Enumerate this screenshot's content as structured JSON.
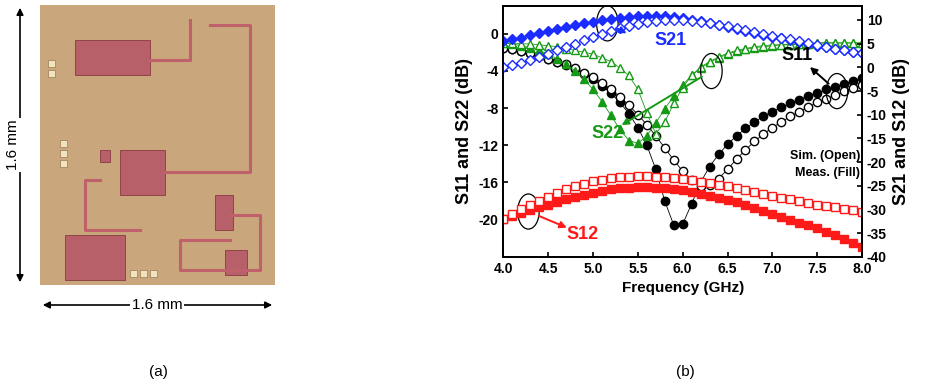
{
  "panel_a": {
    "caption": "(a)",
    "width_label": "1.6 mm",
    "height_label": "1.6 mm"
  },
  "chart_data": {
    "type": "line",
    "caption": "(b)",
    "xlabel": "Frequency (GHz)",
    "ylabel": "S11 and S22 (dB)",
    "y2label": "S21 and S12 (dB)",
    "xlim": [
      4.0,
      8.0
    ],
    "xticks": [
      4.0,
      4.5,
      5.0,
      5.5,
      6.0,
      6.5,
      7.0,
      7.5,
      8.0
    ],
    "ylim": [
      -24,
      3
    ],
    "yticks": [
      0,
      -4,
      -8,
      -12,
      -16,
      -20
    ],
    "y2lim": [
      -40,
      13
    ],
    "y2ticks": [
      10,
      5,
      0,
      -5,
      -10,
      -15,
      -20,
      -25,
      -30,
      -35,
      -40
    ],
    "x": [
      4.0,
      4.1,
      4.2,
      4.3,
      4.4,
      4.5,
      4.6,
      4.7,
      4.8,
      4.9,
      5.0,
      5.1,
      5.2,
      5.3,
      5.4,
      5.5,
      5.6,
      5.7,
      5.8,
      5.9,
      6.0,
      6.1,
      6.2,
      6.3,
      6.4,
      6.5,
      6.6,
      6.7,
      6.8,
      6.9,
      7.0,
      7.1,
      7.2,
      7.3,
      7.4,
      7.5,
      7.6,
      7.7,
      7.8,
      7.9,
      8.0
    ],
    "series": [
      {
        "color": "#000000",
        "marker": "circle",
        "line_style": "solid",
        "values": [
          -1.5,
          -1.7,
          -1.9,
          -2.1,
          -2.4,
          -2.7,
          -3.0,
          -3.4,
          -3.8,
          -4.3,
          -4.9,
          -5.6,
          -6.4,
          -7.4,
          -8.6,
          -10.1,
          -12.0,
          -14.6,
          -18.0,
          -20.6,
          -20.5,
          -18.3,
          -16.0,
          -14.3,
          -13.0,
          -11.9,
          -11.0,
          -10.2,
          -9.5,
          -8.9,
          -8.4,
          -7.9,
          -7.5,
          -7.1,
          -6.7,
          -6.4,
          -6.0,
          -5.7,
          -5.4,
          -5.1,
          -4.8
        ]
      },
      {
        "color": "#000000",
        "marker": "open-circle",
        "line_style": "solid",
        "values": [
          -1.5,
          -1.7,
          -1.9,
          -2.1,
          -2.4,
          -2.7,
          -3.0,
          -3.3,
          -3.7,
          -4.2,
          -4.7,
          -5.3,
          -6.0,
          -6.8,
          -7.7,
          -8.7,
          -9.8,
          -11.0,
          -12.3,
          -13.6,
          -14.8,
          -15.8,
          -16.4,
          -16.3,
          -15.6,
          -14.6,
          -13.5,
          -12.5,
          -11.6,
          -10.8,
          -10.1,
          -9.5,
          -8.9,
          -8.4,
          -7.9,
          -7.4,
          -7.0,
          -6.6,
          -6.2,
          -5.8,
          -5.5
        ]
      },
      {
        "color": "#169a16",
        "marker": "triangle",
        "line_style": "solid",
        "values": [
          -1.0,
          -1.1,
          -1.3,
          -1.5,
          -1.8,
          -2.2,
          -2.7,
          -3.3,
          -4.0,
          -4.9,
          -6.0,
          -7.3,
          -8.8,
          -10.3,
          -11.5,
          -11.8,
          -11.0,
          -9.6,
          -8.1,
          -6.7,
          -5.5,
          -4.5,
          -3.7,
          -3.1,
          -2.6,
          -2.2,
          -1.9,
          -1.7,
          -1.5,
          -1.4,
          -1.3,
          -1.2,
          -1.2,
          -1.1,
          -1.1,
          -1.0,
          -1.0,
          -1.0,
          -1.0,
          -1.0,
          -1.0
        ]
      },
      {
        "color": "#169a16",
        "marker": "open-triangle",
        "line_style": "solid",
        "values": [
          -1.0,
          -1.0,
          -1.1,
          -1.1,
          -1.2,
          -1.3,
          -1.4,
          -1.6,
          -1.8,
          -2.0,
          -2.2,
          -2.6,
          -3.0,
          -3.7,
          -4.5,
          -6.0,
          -8.5,
          -10.8,
          -9.5,
          -7.5,
          -5.8,
          -4.5,
          -3.6,
          -3.0,
          -2.5,
          -2.1,
          -1.8,
          -1.6,
          -1.4,
          -1.3,
          -1.2,
          -1.2,
          -1.1,
          -1.1,
          -1.1,
          -1.0,
          -1.0,
          -1.0,
          -1.0,
          -1.0,
          -1.0
        ]
      },
      {
        "color": "#1a2cff",
        "marker": "diamond",
        "line_style": "solid",
        "axis": "y2",
        "values": [
          5.5,
          5.9,
          6.3,
          6.8,
          7.2,
          7.7,
          8.1,
          8.5,
          8.9,
          9.3,
          9.6,
          10.0,
          10.3,
          10.5,
          10.7,
          10.8,
          10.9,
          10.9,
          10.8,
          10.6,
          10.4,
          10.1,
          9.7,
          9.4,
          9.0,
          8.6,
          8.2,
          7.7,
          7.3,
          6.9,
          6.5,
          6.1,
          5.7,
          5.4,
          5.0,
          4.6,
          4.3,
          3.9,
          3.6,
          3.3,
          3.0
        ]
      },
      {
        "color": "#1a2cff",
        "marker": "open-diamond",
        "line_style": "solid",
        "axis": "y2",
        "values": [
          0.0,
          0.5,
          1.0,
          1.6,
          2.2,
          2.9,
          3.6,
          4.3,
          5.0,
          5.7,
          6.4,
          7.1,
          7.7,
          8.3,
          8.8,
          9.2,
          9.6,
          9.8,
          10.0,
          10.0,
          10.0,
          9.8,
          9.6,
          9.3,
          9.0,
          8.7,
          8.3,
          7.9,
          7.5,
          7.1,
          6.7,
          6.3,
          5.9,
          5.5,
          5.1,
          4.7,
          4.3,
          3.9,
          3.6,
          3.3,
          3.0
        ]
      },
      {
        "color": "#ff1a1a",
        "marker": "square",
        "line_style": "solid",
        "axis": "y2",
        "values": [
          -32.0,
          -31.3,
          -30.7,
          -30.1,
          -29.5,
          -29.0,
          -28.4,
          -27.9,
          -27.4,
          -27.0,
          -26.5,
          -26.1,
          -25.8,
          -25.5,
          -25.4,
          -25.3,
          -25.3,
          -25.4,
          -25.5,
          -25.7,
          -26.0,
          -26.3,
          -26.7,
          -27.1,
          -27.5,
          -28.0,
          -28.5,
          -29.1,
          -29.7,
          -30.3,
          -31.0,
          -31.6,
          -32.2,
          -32.8,
          -33.4,
          -34.0,
          -34.7,
          -35.5,
          -36.3,
          -37.1,
          -38.0
        ]
      },
      {
        "color": "#ff1a1a",
        "marker": "open-square",
        "line_style": "solid",
        "axis": "y2",
        "values": [
          -32.0,
          -31.0,
          -30.0,
          -29.1,
          -28.2,
          -27.3,
          -26.5,
          -25.8,
          -25.1,
          -24.6,
          -24.1,
          -23.7,
          -23.4,
          -23.2,
          -23.1,
          -23.0,
          -23.0,
          -23.1,
          -23.2,
          -23.4,
          -23.6,
          -23.9,
          -24.2,
          -24.5,
          -24.8,
          -25.1,
          -25.5,
          -25.9,
          -26.3,
          -26.7,
          -27.1,
          -27.5,
          -27.9,
          -28.2,
          -28.6,
          -29.0,
          -29.3,
          -29.6,
          -29.9,
          -30.2,
          -30.5
        ]
      }
    ],
    "annotations": [
      {
        "text": "S21",
        "color": "#1a2cff"
      },
      {
        "text": "S22",
        "color": "#169a16"
      },
      {
        "text": "S11",
        "color": "#000000"
      },
      {
        "text": "S12",
        "color": "#ff1a1a"
      },
      {
        "text": "Sim. (Open)",
        "color": "#000000"
      },
      {
        "text": "Meas. (Fill)",
        "color": "#000000"
      }
    ]
  }
}
